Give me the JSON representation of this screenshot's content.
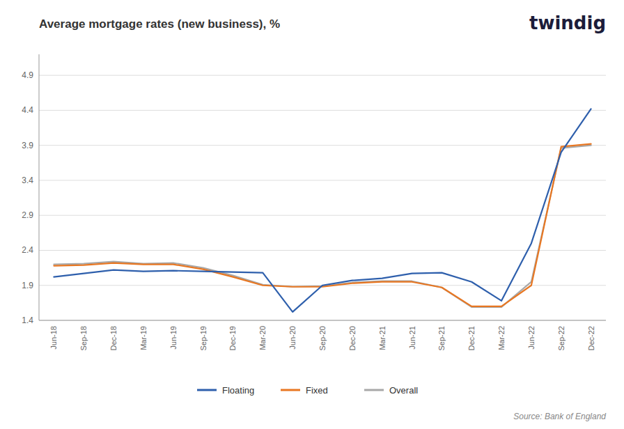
{
  "chart_data": {
    "type": "line",
    "title": "Average mortgage rates (new business), %",
    "annotations": [
      "twindig",
      "Source: Bank of England"
    ],
    "categories": [
      "Jun-18",
      "Sep-18",
      "Dec-18",
      "Mar-19",
      "Jun-19",
      "Sep-19",
      "Dec-19",
      "Mar-20",
      "Jun-20",
      "Sep-20",
      "Dec-20",
      "Mar-21",
      "Jun-21",
      "Sep-21",
      "Dec-21",
      "Mar-22",
      "Jun-22",
      "Sep-22",
      "Dec-22"
    ],
    "series": [
      {
        "name": "Floating",
        "color": "#2E5FAC",
        "values": [
          2.02,
          2.07,
          2.12,
          2.1,
          2.11,
          2.1,
          2.09,
          2.08,
          1.52,
          1.9,
          1.97,
          2.0,
          2.07,
          2.08,
          1.95,
          1.68,
          2.5,
          3.8,
          4.42
        ]
      },
      {
        "name": "Fixed",
        "color": "#E87722",
        "values": [
          2.18,
          2.19,
          2.22,
          2.2,
          2.2,
          2.13,
          2.02,
          1.9,
          1.88,
          1.88,
          1.93,
          1.95,
          1.95,
          1.87,
          1.6,
          1.6,
          1.9,
          3.88,
          3.92
        ]
      },
      {
        "name": "Overall",
        "color": "#A8A8A8",
        "values": [
          2.2,
          2.21,
          2.24,
          2.21,
          2.22,
          2.15,
          2.04,
          1.91,
          1.88,
          1.89,
          1.94,
          1.96,
          1.96,
          1.87,
          1.59,
          1.59,
          1.95,
          3.86,
          3.9
        ]
      }
    ],
    "ylim": [
      1.4,
      5.2
    ],
    "yticks": [
      1.4,
      1.9,
      2.4,
      2.9,
      3.4,
      3.9,
      4.4,
      4.9
    ],
    "grid": true,
    "legend": "bottom"
  }
}
